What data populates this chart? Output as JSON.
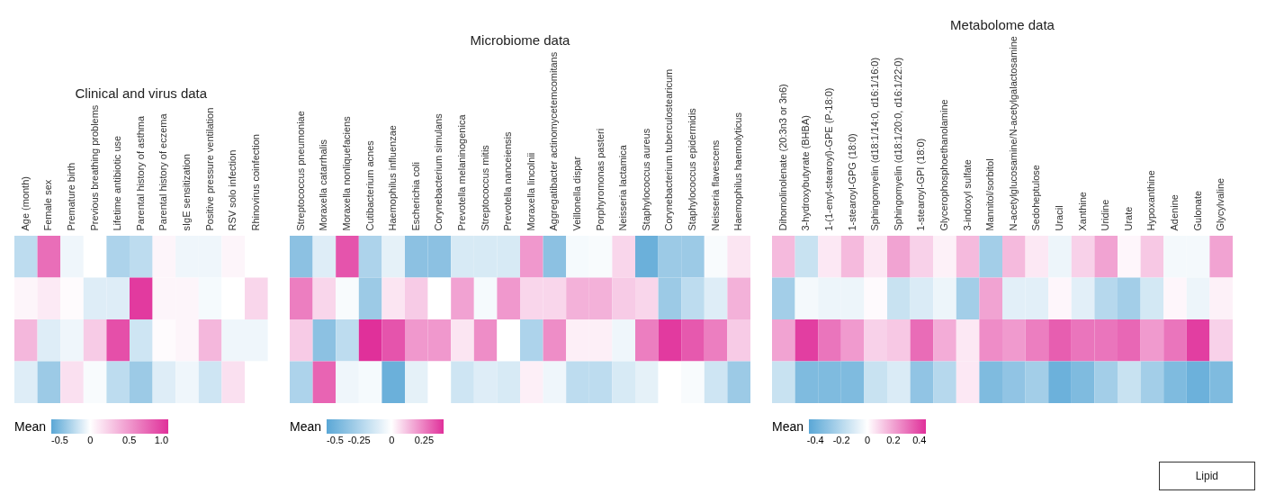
{
  "chart_data": [
    {
      "type": "heatmap",
      "title": "Clinical and virus data",
      "legend_title": "Mean",
      "categories": [
        "Age (month)",
        "Female sex",
        "Premature birth",
        "Previous breathing problems",
        "Lifetime antibiotic use",
        "Parental history of asthma",
        "Parental history of eczema",
        "sIgE sensitization",
        "Positive pressure ventilation",
        "RSV solo infection",
        "Rhinovirus coinfection"
      ],
      "y_categories": [
        null,
        null,
        null,
        null
      ],
      "cells": [
        [
          -0.2,
          0.7,
          -0.05,
          0,
          -0.25,
          -0.2,
          0.05,
          -0.05,
          -0.05,
          0.05,
          0
        ],
        [
          0.05,
          0.1,
          0.02,
          -0.1,
          -0.1,
          0.95,
          0.05,
          0.05,
          -0.03,
          0,
          0.2
        ],
        [
          0.35,
          -0.1,
          -0.05,
          0.25,
          0.85,
          -0.15,
          0.02,
          0.05,
          0.35,
          -0.05,
          -0.05
        ],
        [
          -0.1,
          -0.3,
          0.15,
          -0.02,
          -0.2,
          -0.3,
          -0.1,
          -0.05,
          -0.15,
          0.15,
          0
        ]
      ],
      "clim": [
        -0.5,
        1.0
      ],
      "cticks": [
        -0.5,
        0,
        0.5,
        {
          "value": 1,
          "label": "1.0"
        }
      ]
    },
    {
      "type": "heatmap",
      "title": "Microbiome data",
      "legend_title": "Mean",
      "categories": [
        "Streptococcus pneumoniae",
        "Moraxella catarrhalis",
        "Moraxella nonliquefaciens",
        "Cutibacterium acnes",
        "Haemophilus influenzae",
        "Escherichia coli",
        "Corynebacterium simulans",
        "Prevotella melaninogenica",
        "Streptococcus mitis",
        "Prevotella nanceiensis",
        "Moraxella lincolnii",
        "Aggregatibacter actinomycetemcomitans",
        "Veillonella dispar",
        "Porphyromonas pasteri",
        "Neisseria lactamica",
        "Staphylococcus aureus",
        "Corynebacterium tuberculostearicum",
        "Staphylococcus epidermidis",
        "Neisseria flavescens",
        "Haemophilus haemolyticus"
      ],
      "y_categories": [
        null,
        null,
        null,
        null
      ],
      "cells": [
        [
          -0.35,
          -0.1,
          0.33,
          -0.25,
          -0.08,
          -0.35,
          -0.35,
          -0.12,
          -0.12,
          -0.12,
          0.2,
          -0.35,
          -0.03,
          -0.02,
          0.08,
          -0.45,
          -0.3,
          -0.3,
          -0.02,
          0.05
        ],
        [
          0.25,
          0.08,
          -0.02,
          -0.3,
          0.05,
          0.1,
          0,
          0.18,
          -0.03,
          0.2,
          0.08,
          0.08,
          0.15,
          0.15,
          0.1,
          0.08,
          -0.3,
          -0.2,
          -0.1,
          0.15
        ],
        [
          0.1,
          -0.35,
          -0.2,
          0.4,
          0.33,
          0.2,
          0.2,
          0.05,
          0.22,
          0,
          -0.25,
          0.22,
          0.03,
          0.03,
          -0.05,
          0.25,
          0.38,
          0.32,
          0.25,
          0.1
        ],
        [
          -0.25,
          0.3,
          -0.05,
          -0.03,
          -0.45,
          -0.08,
          0,
          -0.15,
          -0.1,
          -0.12,
          0.03,
          -0.05,
          -0.2,
          -0.2,
          -0.12,
          -0.08,
          0,
          -0.02,
          -0.15,
          -0.3
        ]
      ],
      "clim": [
        -0.5,
        0.4
      ],
      "cticks": [
        -0.5,
        -0.25,
        0,
        0.25
      ]
    },
    {
      "type": "heatmap",
      "title": "Metabolome data",
      "legend_title": "Mean",
      "categories": [
        "Dihomolinolenate (20:3n3 or 3n6)",
        "3-hydroxybutyrate (BHBA)",
        "1-(1-enyl-stearoyl)-GPE (P-18:0)",
        "1-stearoyl-GPG (18:0)",
        "Sphingomyelin (d18:1/14:0, d16:1/16:0)",
        "Sphingomyelin (d18:1/20:0, d16:1/22:0)",
        "1-stearoyl-GPI (18:0)",
        "Glycerophosphoethanolamine",
        "3-indoxyl sulfate",
        "Mannitol/sorbitol",
        "N-acetylglucosamine/N-acetylgalactosamine",
        "Sedoheptulose",
        "Uracil",
        "Xanthine",
        "Uridine",
        "Urate",
        "Hypoxanthine",
        "Adenine",
        "Gulonate",
        "Glycylvaline"
      ],
      "y_categories": [
        null,
        null,
        null,
        null
      ],
      "cells": [
        [
          0.15,
          -0.15,
          0.05,
          0.15,
          0.05,
          0.2,
          0.1,
          0.03,
          0.15,
          -0.25,
          0.15,
          0.05,
          -0.05,
          0.1,
          0.2,
          0.02,
          0.12,
          -0.03,
          -0.03,
          0.2
        ],
        [
          -0.25,
          -0.03,
          -0.05,
          -0.05,
          0.01,
          -0.15,
          -0.1,
          -0.05,
          -0.25,
          0.2,
          -0.08,
          -0.08,
          0.02,
          -0.08,
          -0.2,
          -0.25,
          -0.12,
          0.02,
          -0.05,
          0.03
        ],
        [
          0.2,
          0.42,
          0.3,
          0.22,
          0.1,
          0.12,
          0.32,
          0.18,
          0.05,
          0.25,
          0.22,
          0.28,
          0.35,
          0.3,
          0.3,
          0.33,
          0.22,
          0.3,
          0.42,
          0.1
        ],
        [
          -0.15,
          -0.35,
          -0.35,
          -0.35,
          -0.15,
          -0.1,
          -0.3,
          -0.2,
          0.05,
          -0.35,
          -0.3,
          -0.25,
          -0.4,
          -0.35,
          -0.25,
          -0.15,
          -0.25,
          -0.35,
          -0.4,
          -0.35
        ]
      ],
      "clim": [
        -0.45,
        0.45
      ],
      "cticks": [
        -0.4,
        -0.2,
        0,
        0.2,
        0.4
      ],
      "annotations": [
        "Lipid"
      ]
    }
  ]
}
